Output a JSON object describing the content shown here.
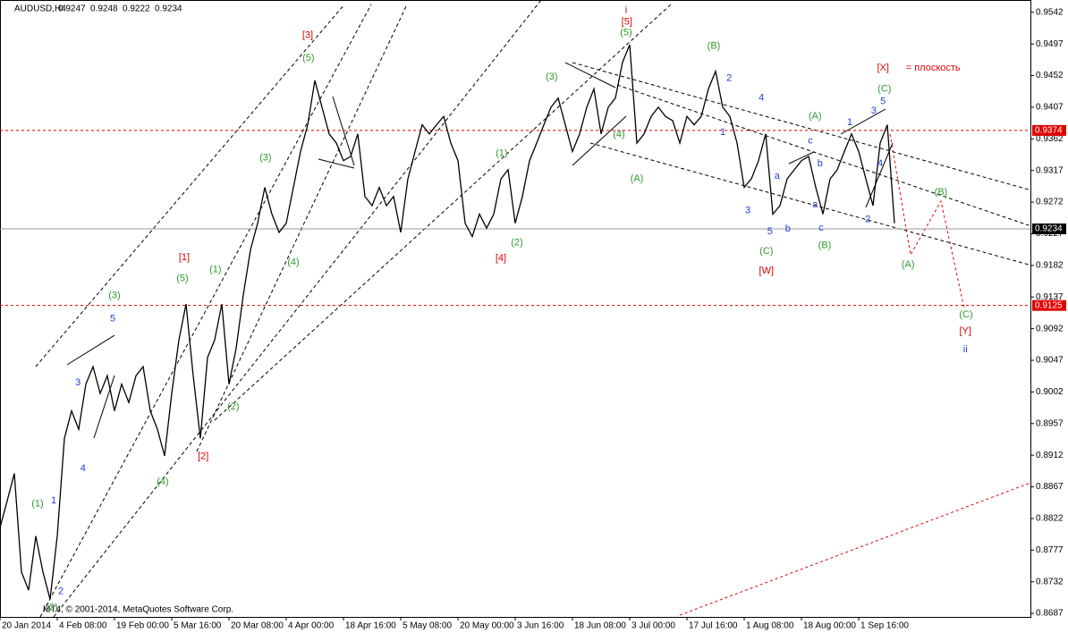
{
  "chart_data": {
    "type": "line",
    "symbol": "AUDUSD,H4",
    "ohlc": [
      0.9247,
      0.9248,
      0.9222,
      0.9234
    ],
    "footer": "MT4, © 2001-2014, MetaQuotes Software Corp.",
    "color": "#000000",
    "x": [
      0,
      1,
      2,
      3,
      4,
      5,
      6,
      7,
      8,
      9,
      10,
      11,
      12,
      13,
      14,
      15,
      16,
      17,
      18,
      19,
      20,
      21,
      22,
      23,
      24,
      25,
      26,
      27,
      28,
      29,
      30,
      31,
      32,
      33,
      34,
      35,
      36,
      37,
      38,
      39,
      40,
      41,
      42,
      43,
      44,
      45,
      46,
      47,
      48,
      49,
      50,
      51,
      52,
      53,
      54,
      55,
      56,
      57,
      58,
      59,
      60,
      61,
      62,
      63,
      64,
      65,
      66,
      67,
      68,
      69,
      70,
      71,
      72,
      73,
      74,
      75,
      76,
      77,
      78,
      79,
      80,
      81,
      82,
      83,
      84,
      85,
      86,
      87,
      88,
      89,
      90,
      91,
      92,
      93,
      94,
      95,
      96,
      97,
      98,
      99,
      100,
      101,
      102,
      103,
      104,
      105,
      106,
      107,
      108,
      109,
      110,
      111,
      112,
      113,
      114,
      115,
      116,
      117,
      118,
      119,
      120,
      121,
      122,
      123,
      124,
      125
    ],
    "values": [
      0.8809,
      0.8847,
      0.8886,
      0.8746,
      0.872,
      0.8797,
      0.8746,
      0.8707,
      0.8797,
      0.8936,
      0.8975,
      0.8949,
      0.9013,
      0.9038,
      0.9,
      0.9025,
      0.8975,
      0.9013,
      0.8987,
      0.9025,
      0.9038,
      0.8975,
      0.8949,
      0.8911,
      0.9,
      0.9076,
      0.9127,
      0.9025,
      0.8936,
      0.9051,
      0.9076,
      0.9127,
      0.9013,
      0.9064,
      0.914,
      0.9204,
      0.9242,
      0.9293,
      0.9255,
      0.9229,
      0.9242,
      0.9293,
      0.9344,
      0.9382,
      0.9445,
      0.9407,
      0.9369,
      0.9356,
      0.9331,
      0.9337,
      0.9369,
      0.928,
      0.9267,
      0.9293,
      0.9267,
      0.928,
      0.9229,
      0.9305,
      0.9344,
      0.9382,
      0.9369,
      0.9382,
      0.9394,
      0.9356,
      0.9331,
      0.9242,
      0.9223,
      0.9255,
      0.9235,
      0.9255,
      0.9305,
      0.9318,
      0.9242,
      0.928,
      0.9331,
      0.9356,
      0.9382,
      0.9407,
      0.942,
      0.9382,
      0.9344,
      0.9369,
      0.9407,
      0.9433,
      0.9369,
      0.9407,
      0.942,
      0.9471,
      0.9496,
      0.9356,
      0.9369,
      0.9394,
      0.9407,
      0.9394,
      0.9388,
      0.9356,
      0.9394,
      0.9382,
      0.9394,
      0.9433,
      0.9458,
      0.9407,
      0.9394,
      0.9356,
      0.9293,
      0.9305,
      0.9331,
      0.9369,
      0.9255,
      0.9267,
      0.9305,
      0.9318,
      0.9331,
      0.9337,
      0.9293,
      0.9255,
      0.9305,
      0.9318,
      0.9344,
      0.9369,
      0.9344,
      0.9305,
      0.9267,
      0.9356,
      0.9382,
      0.9242
    ],
    "xlim": [
      0,
      144
    ],
    "ylim": [
      0.8682,
      0.9557
    ],
    "xticks": [
      {
        "value": 0,
        "label": "20 Jan 2014"
      },
      {
        "value": 8,
        "label": "4 Feb 08:00"
      },
      {
        "value": 16,
        "label": "19 Feb 00:00"
      },
      {
        "value": 24,
        "label": "5 Mar 16:00"
      },
      {
        "value": 32,
        "label": "20 Mar 08:00"
      },
      {
        "value": 40,
        "label": "4 Apr 00:00"
      },
      {
        "value": 48,
        "label": "18 Apr 16:00"
      },
      {
        "value": 56,
        "label": "5 May 08:00"
      },
      {
        "value": 64,
        "label": "20 May 00:00"
      },
      {
        "value": 72,
        "label": "3 Jun 16:00"
      },
      {
        "value": 80,
        "label": "18 Jun 08:00"
      },
      {
        "value": 88,
        "label": "3 Jul 00:00"
      },
      {
        "value": 96,
        "label": "17 Jul 16:00"
      },
      {
        "value": 104,
        "label": "1 Aug 08:00"
      },
      {
        "value": 112,
        "label": "18 Aug 00:00"
      },
      {
        "value": 120,
        "label": "1 Sep 16:00"
      }
    ],
    "yticks": [
      0.9542,
      0.9497,
      0.9452,
      0.9407,
      0.9362,
      0.9317,
      0.9272,
      0.9227,
      0.9182,
      0.9137,
      0.9092,
      0.9047,
      0.9002,
      0.8957,
      0.8912,
      0.8867,
      0.8822,
      0.8777,
      0.8732,
      0.8687
    ],
    "levels": [
      {
        "value": 0.9374,
        "color": "#e00000"
      },
      {
        "value": 0.9234,
        "color": "#999999"
      },
      {
        "value": 0.9125,
        "color": "#e00000"
      }
    ],
    "annotations": [
      {
        "text": "(1)",
        "x": 5.25,
        "y": 0.8843,
        "color": "#2e9a2e"
      },
      {
        "text": "1",
        "x": 7.5,
        "y": 0.8847,
        "color": "#1f3fe0"
      },
      {
        "text": "2",
        "x": 8.5,
        "y": 0.8718,
        "color": "#1f3fe0"
      },
      {
        "text": "(2)",
        "x": 7.25,
        "y": 0.8695,
        "color": "#2e9a2e"
      },
      {
        "text": "3",
        "x": 10.9,
        "y": 0.9015,
        "color": "#1f3fe0"
      },
      {
        "text": "4",
        "x": 11.6,
        "y": 0.8893,
        "color": "#1f3fe0"
      },
      {
        "text": "5",
        "x": 15.75,
        "y": 0.9106,
        "color": "#1f3fe0"
      },
      {
        "text": "(3)",
        "x": 16,
        "y": 0.9139,
        "color": "#2e9a2e"
      },
      {
        "text": "(4)",
        "x": 22.75,
        "y": 0.8874,
        "color": "#2e9a2e"
      },
      {
        "text": "(5)",
        "x": 25.5,
        "y": 0.9163,
        "color": "#2e9a2e"
      },
      {
        "text": "[1]",
        "x": 25.75,
        "y": 0.9193,
        "color": "#e00000"
      },
      {
        "text": "[2]",
        "x": 28.4,
        "y": 0.891,
        "color": "#e00000"
      },
      {
        "text": "(1)",
        "x": 30.1,
        "y": 0.9176,
        "color": "#2e9a2e"
      },
      {
        "text": "(2)",
        "x": 32.6,
        "y": 0.8981,
        "color": "#2e9a2e"
      },
      {
        "text": "(3)",
        "x": 37.1,
        "y": 0.9335,
        "color": "#2e9a2e"
      },
      {
        "text": "(4)",
        "x": 41,
        "y": 0.9186,
        "color": "#2e9a2e"
      },
      {
        "text": "(5)",
        "x": 43.1,
        "y": 0.9477,
        "color": "#2e9a2e"
      },
      {
        "text": "[3]",
        "x": 43,
        "y": 0.9509,
        "color": "#e00000"
      },
      {
        "text": "(1)",
        "x": 70.1,
        "y": 0.9341,
        "color": "#2e9a2e"
      },
      {
        "text": "(2)",
        "x": 72.25,
        "y": 0.9214,
        "color": "#2e9a2e"
      },
      {
        "text": "[4]",
        "x": 70,
        "y": 0.9192,
        "color": "#e00000"
      },
      {
        "text": "(3)",
        "x": 77.1,
        "y": 0.945,
        "color": "#2e9a2e"
      },
      {
        "text": "(4)",
        "x": 86.5,
        "y": 0.9368,
        "color": "#2e9a2e"
      },
      {
        "text": "(5)",
        "x": 87.5,
        "y": 0.9513,
        "color": "#2e9a2e"
      },
      {
        "text": "[5]",
        "x": 87.6,
        "y": 0.9528,
        "color": "#e00000"
      },
      {
        "text": "i",
        "x": 87.5,
        "y": 0.9545,
        "color": "#b00020"
      },
      {
        "text": "(A)",
        "x": 89,
        "y": 0.9305,
        "color": "#2e9a2e"
      },
      {
        "text": "(B)",
        "x": 99.75,
        "y": 0.9494,
        "color": "#2e9a2e"
      },
      {
        "text": "2",
        "x": 101.9,
        "y": 0.9448,
        "color": "#1f3fe0"
      },
      {
        "text": "1",
        "x": 101,
        "y": 0.9371,
        "color": "#1f3fe0"
      },
      {
        "text": "4",
        "x": 106.4,
        "y": 0.942,
        "color": "#1f3fe0"
      },
      {
        "text": "3",
        "x": 104.5,
        "y": 0.926,
        "color": "#1f3fe0"
      },
      {
        "text": "5",
        "x": 107.6,
        "y": 0.923,
        "color": "#1f3fe0"
      },
      {
        "text": "(C)",
        "x": 107.1,
        "y": 0.9202,
        "color": "#2e9a2e"
      },
      {
        "text": "[W]",
        "x": 107.1,
        "y": 0.9174,
        "color": "#e00000"
      },
      {
        "text": "a",
        "x": 108.6,
        "y": 0.9309,
        "color": "#1f3fe0"
      },
      {
        "text": "b",
        "x": 110.1,
        "y": 0.9234,
        "color": "#1f3fe0"
      },
      {
        "text": "c",
        "x": 113.25,
        "y": 0.9359,
        "color": "#1f3fe0"
      },
      {
        "text": "(A)",
        "x": 113.9,
        "y": 0.9394,
        "color": "#2e9a2e"
      },
      {
        "text": "b",
        "x": 114.6,
        "y": 0.9327,
        "color": "#1f3fe0"
      },
      {
        "text": "a",
        "x": 113.9,
        "y": 0.9268,
        "color": "#1f3fe0"
      },
      {
        "text": "c",
        "x": 114.75,
        "y": 0.9235,
        "color": "#1f3fe0"
      },
      {
        "text": "(B)",
        "x": 115.25,
        "y": 0.921,
        "color": "#2e9a2e"
      },
      {
        "text": "1",
        "x": 118.75,
        "y": 0.9385,
        "color": "#1f3fe0"
      },
      {
        "text": "3",
        "x": 122.1,
        "y": 0.9402,
        "color": "#1f3fe0"
      },
      {
        "text": "5",
        "x": 123.4,
        "y": 0.9415,
        "color": "#1f3fe0"
      },
      {
        "text": "4",
        "x": 123,
        "y": 0.9327,
        "color": "#1f3fe0"
      },
      {
        "text": "2",
        "x": 121.25,
        "y": 0.9247,
        "color": "#1f3fe0"
      },
      {
        "text": "(C)",
        "x": 123.6,
        "y": 0.9433,
        "color": "#2e9a2e"
      },
      {
        "text": "[X]",
        "x": 123.4,
        "y": 0.9463,
        "color": "#e00000"
      },
      {
        "text": "= плоскость",
        "x": 130.4,
        "y": 0.9463,
        "color": "#e00000"
      },
      {
        "text": "(B)",
        "x": 131.5,
        "y": 0.9286,
        "color": "#2e9a2e"
      },
      {
        "text": "(A)",
        "x": 126.9,
        "y": 0.9183,
        "color": "#2e9a2e"
      },
      {
        "text": "(C)",
        "x": 135,
        "y": 0.9112,
        "color": "#2e9a2e"
      },
      {
        "text": "[Y]",
        "x": 134.9,
        "y": 0.9088,
        "color": "#e00000"
      },
      {
        "text": "ii",
        "x": 134.9,
        "y": 0.9062,
        "color": "#1f3fe0"
      }
    ]
  }
}
